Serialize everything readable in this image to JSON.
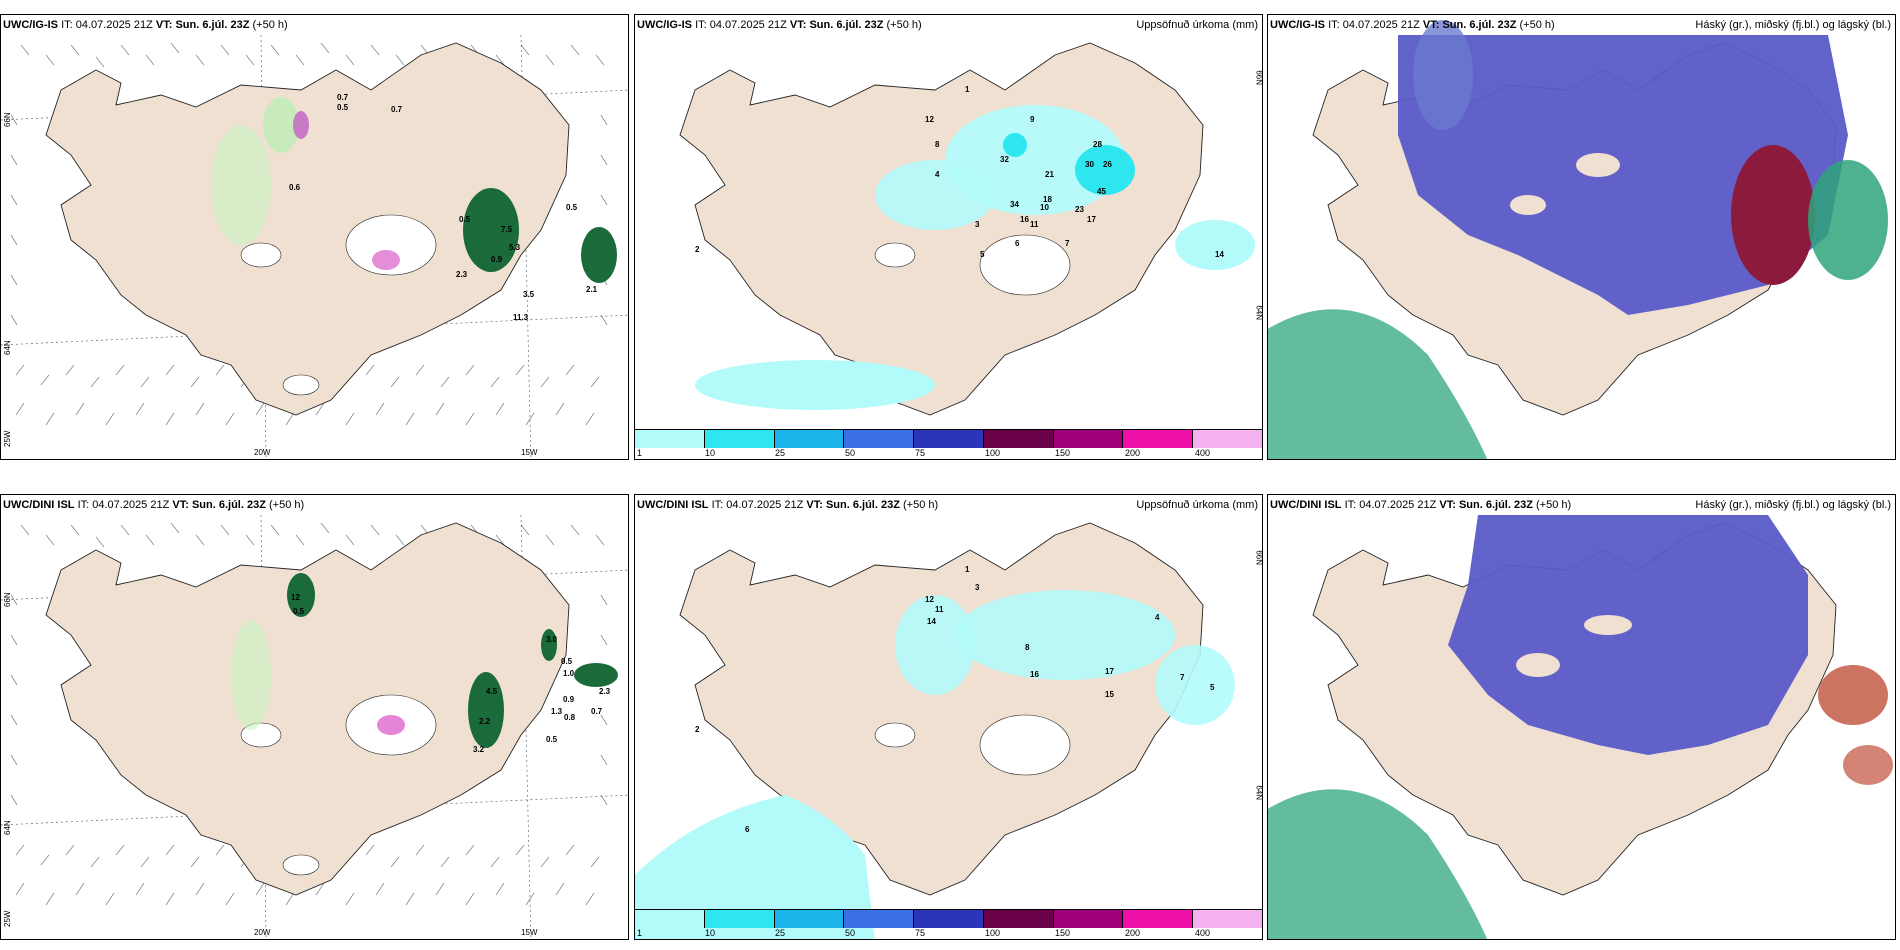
{
  "rows": [
    {
      "model": "UWC/IG-IS",
      "it_label": "IT:",
      "it_value": "04.07.2025 21Z",
      "vt_label": "VT:",
      "vt_value": "Sun. 6.júl. 23Z",
      "lead": "(+50 h)",
      "precip_values": [
        "1",
        "2",
        "9",
        "12",
        "8",
        "32",
        "21",
        "28",
        "30",
        "26",
        "45",
        "18",
        "16",
        "34",
        "23",
        "17",
        "6",
        "5",
        "3",
        "4",
        "7",
        "11",
        "10",
        "14"
      ],
      "wind_values": [
        "0.7",
        "0.5",
        "0.7",
        "0.6",
        "0.5",
        "7.5",
        "5.3",
        "0.9",
        "2.1",
        "2.3",
        "11.3",
        "3.5",
        "0.5"
      ]
    },
    {
      "model": "UWC/DINI ISL",
      "it_label": "IT:",
      "it_value": "04.07.2025 21Z",
      "vt_label": "VT:",
      "vt_value": "Sun. 6.júl. 23Z",
      "lead": "(+50 h)",
      "precip_values": [
        "1",
        "3",
        "2",
        "12",
        "11",
        "14",
        "8",
        "6",
        "17",
        "15",
        "16",
        "4",
        "5",
        "7"
      ],
      "wind_values": [
        "12",
        "0.5",
        "3.0",
        "0.5",
        "1.0",
        "0.9",
        "1.3",
        "0.8",
        "0.7",
        "2.3",
        "4.5",
        "2.2",
        "3.2",
        "0.5"
      ]
    }
  ],
  "panel_titles": {
    "precip": "Uppsöfnuð úrkoma (mm)",
    "cloud": "Háský (gr.), miðský (fj.bl.) og lágský (bl.)"
  },
  "colorbar": {
    "ticks": [
      "1",
      "10",
      "25",
      "50",
      "75",
      "100",
      "150",
      "200",
      "400"
    ],
    "colors": [
      "#b3fbfb",
      "#2ee6f0",
      "#1ab4e8",
      "#3a6fe6",
      "#2a35b8",
      "#6a0045",
      "#a0007a",
      "#ee10a8",
      "#f5b0f0"
    ]
  },
  "axis_labels": {
    "lon_20w": "20W",
    "lon_15w": "15W",
    "lat_66n": "66N",
    "lat_64n": "64N",
    "lat_25w": "25W"
  },
  "colors": {
    "land": "#efe0d2",
    "coast": "#222222",
    "precip_light": "#b3fbfb",
    "precip_mid": "#2ee6f0",
    "cloud_high": "#5a5ac8",
    "cloud_mid": "#2fa57a",
    "cloud_low": "#8c1a3c"
  }
}
